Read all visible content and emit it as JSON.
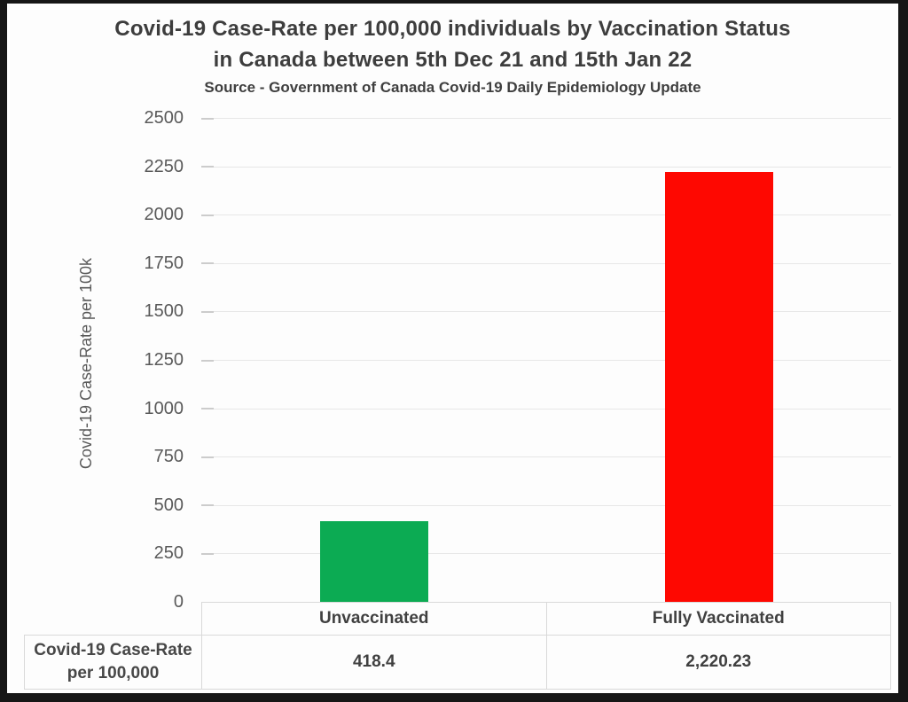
{
  "title": {
    "line1": "Covid-19 Case-Rate per 100,000 individuals by Vaccination Status",
    "line2": "in Canada between 5th Dec 21 and 15th Jan 22",
    "source": "Source - Government of Canada Covid-19 Daily Epidemiology Update"
  },
  "chart_data": {
    "type": "bar",
    "title": "Covid-19 Case-Rate per 100,000 individuals by Vaccination Status in Canada between 5th Dec 21 and 15th Jan 22",
    "subtitle": "Source - Government of Canada Covid-19 Daily Epidemiology Update",
    "categories": [
      "Unvaccinated",
      "Fully Vaccinated"
    ],
    "values": [
      418.4,
      2220.23
    ],
    "bar_colors": [
      "#0cab53",
      "#fe0801"
    ],
    "xlabel": "",
    "ylabel": "Covid-19 Case-Rate per 100k",
    "ylim": [
      0,
      2500
    ],
    "yticks": [
      0,
      250,
      500,
      750,
      1000,
      1250,
      1500,
      1750,
      2000,
      2250,
      2500
    ],
    "grid": true,
    "legend": false,
    "data_table_shown": true
  },
  "data_table": {
    "row_header_line1": "Covid-19 Case-Rate",
    "row_header_line2": "per 100,000",
    "values": [
      "418.4",
      "2,220.23"
    ]
  }
}
